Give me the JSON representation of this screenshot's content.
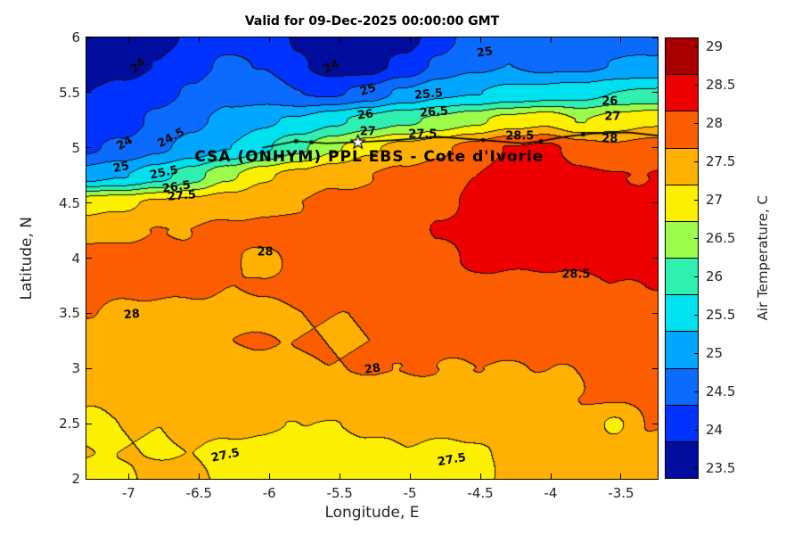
{
  "chart_data": {
    "type": "heatmap",
    "style": "filled-contour",
    "title": "Valid for 09-Dec-2025 00:00:00 GMT",
    "xlabel": "Longitude, E",
    "ylabel": "Latitude, N",
    "xlim": [
      -7.3,
      -3.24
    ],
    "ylim": [
      2,
      6
    ],
    "xtick_values": [
      -7,
      -6.5,
      -6,
      -5.5,
      -5,
      -4.5,
      -4,
      -3.5
    ],
    "xtick_labels": [
      "-7",
      "-6.5",
      "-6",
      "-5.5",
      "-5",
      "-4.5",
      "-4",
      "-3.5"
    ],
    "ytick_values": [
      2,
      2.5,
      3,
      3.5,
      4,
      4.5,
      5,
      5.5,
      6
    ],
    "ytick_labels": [
      "2",
      "2.5",
      "3",
      "3.5",
      "4",
      "4.5",
      "5",
      "5.5",
      "6"
    ],
    "contour_level_start": 23.5,
    "contour_level_step": 0.5,
    "band_colors": [
      "#000D9E",
      "#0033FF",
      "#0B6BFF",
      "#00A6FF",
      "#00E1F0",
      "#30F0B0",
      "#9CFC4C",
      "#FCF000",
      "#FFB000",
      "#FC5D00",
      "#EE0000",
      "#A80000"
    ],
    "grid": {
      "units": "C",
      "lon0": -7.3,
      "dlon": 0.25,
      "ncols": 17,
      "lat0": 6.0,
      "dlat": 0.25,
      "nrows": 17,
      "values": [
        [
          23.6,
          23.6,
          23.8,
          24.1,
          24.3,
          24.4,
          23.9,
          23.6,
          23.6,
          23.8,
          24.3,
          24.7,
          24.8,
          24.7,
          24.7,
          24.8,
          24.8
        ],
        [
          23.8,
          23.9,
          24.0,
          24.3,
          24.6,
          24.5,
          24.1,
          23.8,
          23.8,
          24.1,
          24.6,
          24.9,
          25.0,
          24.9,
          24.9,
          25.0,
          25.1
        ],
        [
          24.0,
          24.1,
          24.3,
          24.6,
          24.9,
          24.8,
          24.5,
          24.4,
          24.7,
          25.1,
          25.4,
          25.5,
          25.6,
          25.7,
          25.8,
          26.0,
          26.1
        ],
        [
          24.2,
          24.3,
          24.6,
          24.9,
          25.1,
          25.4,
          25.6,
          25.9,
          26.2,
          26.4,
          26.6,
          26.9,
          27.2,
          27.4,
          27.0,
          27.2,
          27.4
        ],
        [
          24.4,
          24.6,
          24.9,
          25.2,
          25.5,
          25.9,
          26.4,
          26.9,
          27.4,
          27.7,
          27.9,
          28.2,
          28.5,
          28.6,
          28.3,
          28.1,
          28.3
        ],
        [
          25.3,
          25.5,
          25.8,
          26.3,
          26.9,
          27.4,
          27.7,
          27.9,
          28.0,
          28.1,
          28.2,
          28.5,
          28.7,
          28.7,
          28.6,
          28.5,
          28.5
        ],
        [
          27.3,
          27.4,
          27.6,
          27.7,
          27.8,
          27.9,
          28.0,
          28.1,
          28.1,
          28.2,
          28.4,
          28.6,
          28.7,
          28.7,
          28.6,
          28.6,
          28.6
        ],
        [
          27.8,
          27.9,
          28.0,
          28.0,
          28.1,
          28.1,
          28.1,
          28.2,
          28.2,
          28.3,
          28.5,
          28.6,
          28.7,
          28.7,
          28.7,
          28.6,
          28.6
        ],
        [
          28.2,
          28.2,
          28.2,
          28.1,
          28.1,
          27.9,
          28.1,
          28.2,
          28.2,
          28.3,
          28.4,
          28.6,
          28.6,
          28.6,
          28.6,
          28.6,
          28.6
        ],
        [
          28.1,
          28.1,
          28.1,
          28.1,
          28.0,
          28.0,
          28.1,
          28.1,
          28.1,
          28.2,
          28.3,
          28.4,
          28.4,
          28.4,
          28.4,
          28.5,
          28.5
        ],
        [
          28.0,
          27.9,
          27.9,
          27.9,
          27.9,
          27.9,
          28.0,
          28.0,
          28.0,
          28.1,
          28.1,
          28.2,
          28.2,
          28.2,
          28.3,
          28.3,
          28.3
        ],
        [
          27.8,
          27.8,
          27.9,
          27.9,
          28.0,
          28.0,
          28.0,
          28.0,
          28.0,
          28.1,
          28.1,
          28.1,
          28.1,
          28.0,
          28.1,
          28.1,
          28.1
        ],
        [
          27.6,
          27.7,
          27.7,
          27.8,
          27.8,
          27.9,
          27.9,
          28.0,
          28.0,
          28.0,
          28.0,
          28.0,
          28.0,
          28.0,
          28.0,
          28.1,
          28.1
        ],
        [
          27.5,
          27.6,
          27.6,
          27.6,
          27.7,
          27.7,
          27.7,
          27.8,
          27.8,
          27.8,
          27.8,
          27.8,
          27.9,
          27.9,
          28.0,
          28.1,
          28.1
        ],
        [
          27.4,
          27.5,
          27.5,
          27.6,
          27.6,
          27.6,
          27.5,
          27.5,
          27.6,
          27.6,
          27.6,
          27.7,
          27.7,
          27.8,
          27.9,
          27.4,
          28.0
        ],
        [
          27.5,
          27.5,
          27.5,
          27.5,
          27.4,
          27.3,
          27.3,
          27.3,
          27.4,
          27.5,
          27.4,
          27.4,
          27.6,
          27.7,
          27.7,
          27.8,
          27.8
        ],
        [
          27.3,
          27.4,
          27.6,
          27.6,
          27.4,
          27.2,
          27.2,
          27.2,
          27.3,
          27.4,
          27.3,
          27.4,
          27.6,
          27.6,
          27.7,
          27.7,
          27.7
        ]
      ]
    },
    "contour_labels": [
      {
        "t": "24",
        "lon": -6.93,
        "lat": 5.74,
        "rot": -38
      },
      {
        "t": "24",
        "lon": -5.56,
        "lat": 5.73,
        "rot": -25
      },
      {
        "t": "25",
        "lon": -4.47,
        "lat": 5.86,
        "rot": -8
      },
      {
        "t": "25",
        "lon": -5.3,
        "lat": 5.52,
        "rot": -18
      },
      {
        "t": "25.5",
        "lon": -4.87,
        "lat": 5.48,
        "rot": -5
      },
      {
        "t": "26",
        "lon": -5.32,
        "lat": 5.3,
        "rot": -8
      },
      {
        "t": "26.5",
        "lon": -4.83,
        "lat": 5.32,
        "rot": -5
      },
      {
        "t": "27",
        "lon": -5.3,
        "lat": 5.14,
        "rot": 0
      },
      {
        "t": "27.5",
        "lon": -4.91,
        "lat": 5.12,
        "rot": 0
      },
      {
        "t": "28.5",
        "lon": -4.22,
        "lat": 5.1,
        "rot": 0
      },
      {
        "t": "26",
        "lon": -3.58,
        "lat": 5.42,
        "rot": 0
      },
      {
        "t": "27",
        "lon": -3.56,
        "lat": 5.28,
        "rot": 0
      },
      {
        "t": "28",
        "lon": -3.58,
        "lat": 5.08,
        "rot": 0
      },
      {
        "t": "24",
        "lon": -7.03,
        "lat": 5.04,
        "rot": -30
      },
      {
        "t": "24.5",
        "lon": -6.7,
        "lat": 5.09,
        "rot": -28
      },
      {
        "t": "25",
        "lon": -7.05,
        "lat": 4.82,
        "rot": -12
      },
      {
        "t": "25.5",
        "lon": -6.75,
        "lat": 4.77,
        "rot": -12
      },
      {
        "t": "26.5",
        "lon": -6.66,
        "lat": 4.64,
        "rot": -8
      },
      {
        "t": "27.5",
        "lon": -6.62,
        "lat": 4.56,
        "rot": -5
      },
      {
        "t": "28",
        "lon": -6.03,
        "lat": 4.05,
        "rot": 0
      },
      {
        "t": "28",
        "lon": -6.98,
        "lat": 3.49,
        "rot": -5
      },
      {
        "t": "28.5",
        "lon": -3.82,
        "lat": 3.85,
        "rot": 0
      },
      {
        "t": "28",
        "lon": -5.27,
        "lat": 2.99,
        "rot": -8
      },
      {
        "t": "27.5",
        "lon": -6.31,
        "lat": 2.21,
        "rot": -12
      },
      {
        "t": "27.5",
        "lon": -4.7,
        "lat": 2.17,
        "rot": -10
      }
    ],
    "annotation": {
      "text": "CSA (ONHYM) PPL EBS  - Cote d'Ivorie",
      "lon": -5.29,
      "lat": 4.92,
      "line": [
        [
          -6.05,
          5.0
        ],
        [
          -5.81,
          5.06
        ],
        [
          -5.6,
          5.04
        ],
        [
          -5.37,
          5.05
        ],
        [
          -5.1,
          5.07
        ],
        [
          -4.8,
          5.1
        ],
        [
          -4.48,
          5.07
        ],
        [
          -4.2,
          5.04
        ],
        [
          -4.07,
          5.06
        ],
        [
          -3.9,
          5.1
        ],
        [
          -3.7,
          5.13
        ],
        [
          -3.45,
          5.14
        ],
        [
          -3.24,
          5.11
        ]
      ],
      "markers": [
        [
          -5.81,
          5.06
        ],
        [
          -5.7,
          5.05
        ],
        [
          -4.48,
          5.07
        ],
        [
          -4.07,
          5.06
        ],
        [
          -3.77,
          5.12
        ]
      ],
      "star": {
        "lon": -5.37,
        "lat": 5.05
      }
    },
    "colorbar": {
      "label": "Air Temperature, C",
      "tick_values": [
        29,
        28.5,
        28,
        27.5,
        27,
        26.5,
        26,
        25.5,
        25,
        24.5,
        24,
        23.5
      ],
      "tick_labels": [
        "29",
        "28.5",
        "28",
        "27.5",
        "27",
        "26.5",
        "26",
        "25.5",
        "25",
        "24.5",
        "24",
        "23.5"
      ]
    }
  }
}
